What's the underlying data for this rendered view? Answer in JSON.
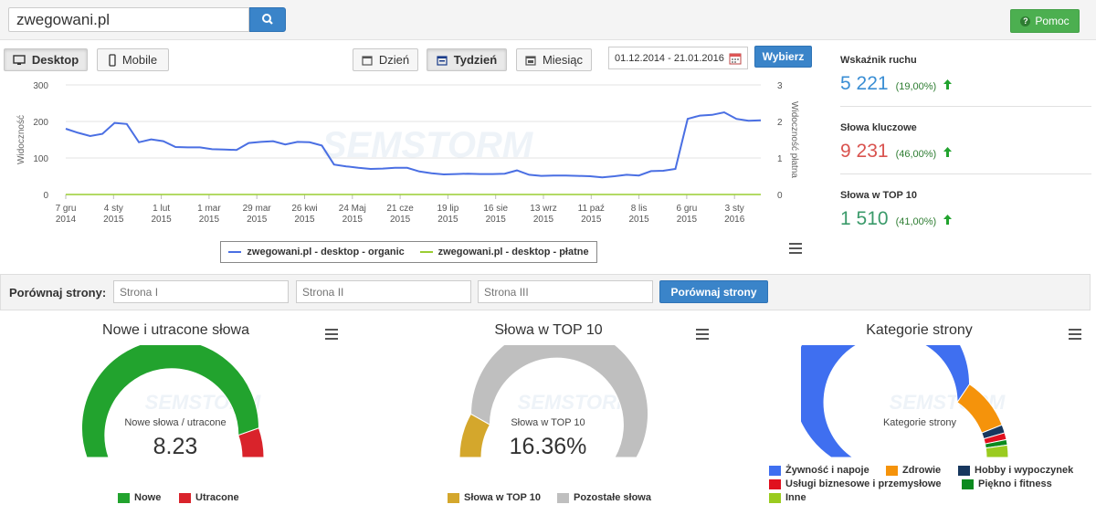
{
  "search": {
    "value": "zwegowani.pl"
  },
  "help_label": "Pomoc",
  "device_tabs": [
    {
      "label": "Desktop",
      "active": true
    },
    {
      "label": "Mobile",
      "active": false
    }
  ],
  "period_tabs": [
    {
      "label": "Dzień",
      "active": false
    },
    {
      "label": "Tydzień",
      "active": true
    },
    {
      "label": "Miesiąc",
      "active": false
    }
  ],
  "date_range": "01.12.2014 - 21.01.2016",
  "apply_label": "Wybierz",
  "stats": [
    {
      "label": "Wskaźnik ruchu",
      "value": "5 221",
      "change": "(19,00%)",
      "color": "#3a8ed4"
    },
    {
      "label": "Słowa kluczowe",
      "value": "9 231",
      "change": "(46,00%)",
      "color": "#d9534f"
    },
    {
      "label": "Słowa w TOP 10",
      "value": "1 510",
      "change": "(41,00%)",
      "color": "#3a9a6a"
    }
  ],
  "watermark": "SEMSTORM",
  "chart_data": {
    "type": "line",
    "ylabel": "Widoczność",
    "y2label": "Widoczność płatna",
    "ylim": [
      0,
      300
    ],
    "y2lim": [
      0,
      3
    ],
    "yticks": [
      "0",
      "100",
      "200",
      "300"
    ],
    "y2ticks": [
      "0",
      "1",
      "2",
      "3"
    ],
    "xticks": [
      [
        "7 gru",
        "2014"
      ],
      [
        "4 sty",
        "2015"
      ],
      [
        "1 lut",
        "2015"
      ],
      [
        "1 mar",
        "2015"
      ],
      [
        "29 mar",
        "2015"
      ],
      [
        "26 kwi",
        "2015"
      ],
      [
        "24 Maj",
        "2015"
      ],
      [
        "21 cze",
        "2015"
      ],
      [
        "19 lip",
        "2015"
      ],
      [
        "16 sie",
        "2015"
      ],
      [
        "13 wrz",
        "2015"
      ],
      [
        "11 paź",
        "2015"
      ],
      [
        "8 lis",
        "2015"
      ],
      [
        "6 gru",
        "2015"
      ],
      [
        "3 sty",
        "2016"
      ]
    ],
    "grid": true,
    "legend_position": "bottom",
    "series": [
      {
        "name": "zwegowani.pl - desktop - organic",
        "color": "#4a6fe3",
        "values": [
          180,
          169,
          160,
          166,
          196,
          193,
          143,
          151,
          146,
          130,
          129,
          129,
          124,
          123,
          122,
          141,
          144,
          146,
          137,
          144,
          143,
          134,
          82,
          77,
          73,
          70,
          71,
          73,
          73,
          63,
          58,
          55,
          56,
          57,
          56,
          56,
          57,
          66,
          54,
          51,
          52,
          52,
          51,
          50,
          47,
          50,
          54,
          52,
          64,
          65,
          70,
          207,
          216,
          218,
          225,
          207,
          202,
          203
        ]
      },
      {
        "name": "zwegowani.pl - desktop - płatne",
        "color": "#9acd32",
        "values": [
          0,
          0,
          0,
          0,
          0,
          0,
          0,
          0,
          0,
          0,
          0,
          0,
          0,
          0,
          0,
          0,
          0,
          0,
          0,
          0,
          0,
          0,
          0,
          0,
          0,
          0,
          0,
          0,
          0,
          0,
          0,
          0,
          0,
          0,
          0,
          0,
          0,
          0,
          0,
          0,
          0,
          0,
          0,
          0,
          0,
          0,
          0,
          0,
          0,
          0,
          0,
          0,
          0,
          0,
          0,
          0,
          0,
          0
        ]
      }
    ]
  },
  "compare": {
    "label": "Porównaj strony:",
    "placeholders": [
      "Strona I",
      "Strona II",
      "Strona III"
    ],
    "button": "Porównaj strony"
  },
  "gauges": [
    {
      "title": "Nowe i utracone słowa",
      "subtitle": "Nowe słowa / utracone",
      "value": "8.23",
      "segments": [
        {
          "name": "Nowe",
          "fraction": 0.892,
          "color": "#22a32e"
        },
        {
          "name": "Utracone",
          "fraction": 0.108,
          "color": "#d9232b"
        }
      ]
    },
    {
      "title": "Słowa w TOP 10",
      "subtitle": "Słowa w TOP 10",
      "value": "16.36%",
      "segments": [
        {
          "name": "Słowa w TOP 10",
          "fraction": 0.1636,
          "color": "#d4a72c"
        },
        {
          "name": "Pozostałe słowa",
          "fraction": 0.8364,
          "color": "#bfbfbf"
        }
      ]
    },
    {
      "title": "Kategorie strony",
      "subtitle": "Kategorie strony",
      "value": "",
      "segments": [
        {
          "name": "Żywność i napoje",
          "fraction": 0.69,
          "color": "#3f6ff0"
        },
        {
          "name": "Zdrowie",
          "fraction": 0.19,
          "color": "#f5930b"
        },
        {
          "name": "Hobby i wypoczynek",
          "fraction": 0.03,
          "color": "#17375e"
        },
        {
          "name": "Usługi biznesowe i przemysłowe",
          "fraction": 0.025,
          "color": "#e0101e"
        },
        {
          "name": "Piękno i fitness",
          "fraction": 0.02,
          "color": "#0b8a1e"
        },
        {
          "name": "Inne",
          "fraction": 0.045,
          "color": "#9acb1f"
        }
      ]
    }
  ]
}
